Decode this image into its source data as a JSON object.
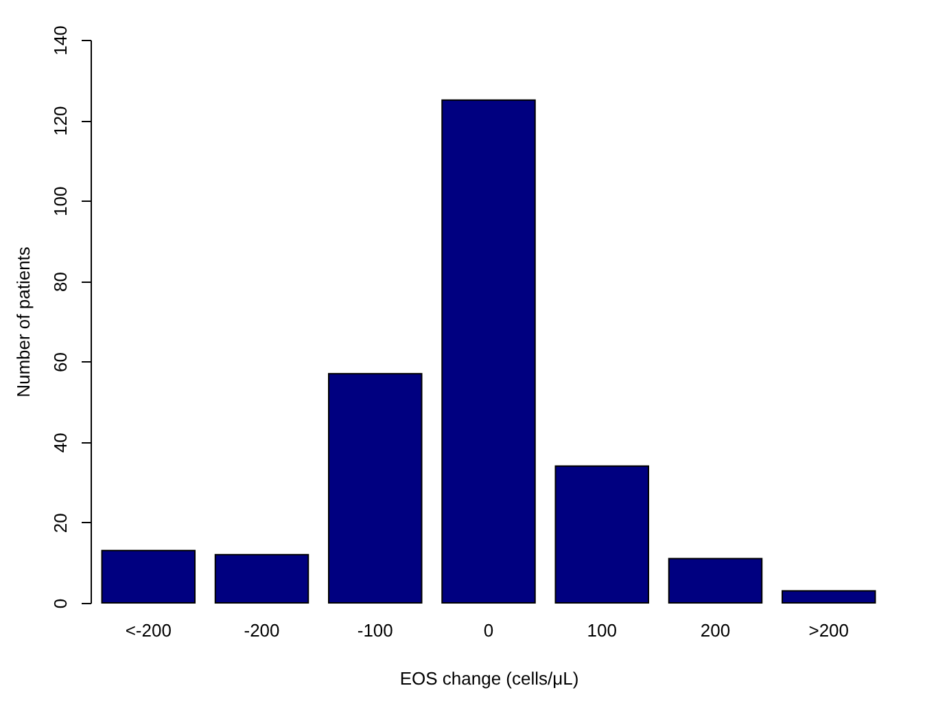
{
  "chart_data": {
    "type": "bar",
    "xlabel": "EOS change (cells/μL)",
    "ylabel": "Number of patients",
    "categories": [
      "<-200",
      "-200",
      "-100",
      "0",
      "100",
      "200",
      ">200"
    ],
    "values": [
      13,
      12,
      57,
      125,
      34,
      11,
      3
    ],
    "color": "#000080",
    "ylim": [
      0,
      140
    ],
    "yticks": [
      0,
      20,
      40,
      60,
      80,
      100,
      120,
      140
    ],
    "grid": false
  }
}
